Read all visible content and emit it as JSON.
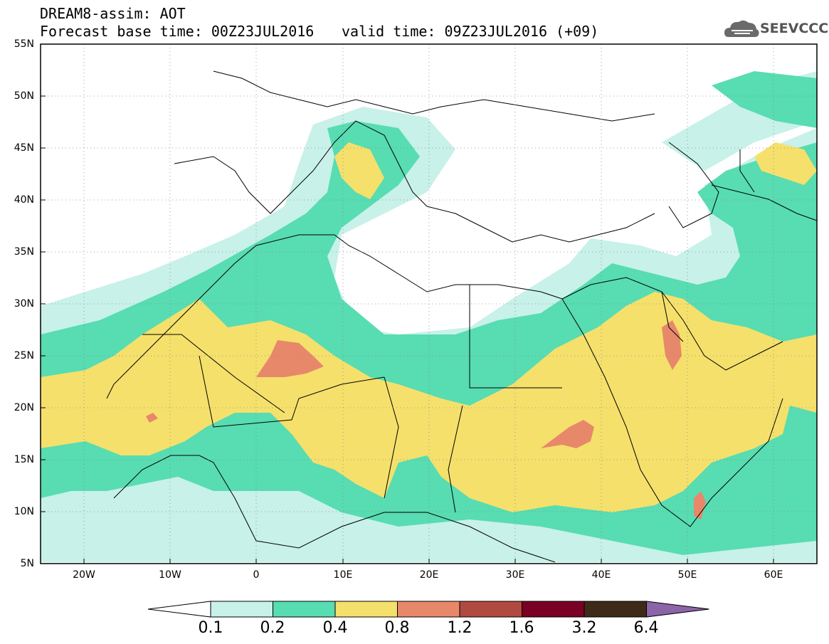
{
  "header": {
    "title": "DREAM8-assim: AOT",
    "base_time": "Forecast base time: 00Z23JUL2016",
    "valid_time": "valid time: 09Z23JUL2016 (+09)",
    "logo": "SEEVCCC"
  },
  "axes": {
    "lat_labels": [
      "55N",
      "50N",
      "45N",
      "40N",
      "35N",
      "30N",
      "25N",
      "20N",
      "15N",
      "10N",
      "5N"
    ],
    "lat_values": [
      55,
      50,
      45,
      40,
      35,
      30,
      25,
      20,
      15,
      10,
      5
    ],
    "lon_labels": [
      "20W",
      "10W",
      "0",
      "10E",
      "20E",
      "30E",
      "40E",
      "50E",
      "60E"
    ],
    "lon_values": [
      -20,
      -10,
      0,
      10,
      20,
      30,
      40,
      50,
      60
    ],
    "lon_range": [
      -25,
      65
    ],
    "lat_range": [
      5,
      55
    ]
  },
  "colorbar": {
    "labels": [
      "0.1",
      "0.2",
      "0.4",
      "0.8",
      "1.2",
      "1.6",
      "3.2",
      "6.4"
    ],
    "colors": [
      "#ffffff",
      "#c7f1e9",
      "#58dcb2",
      "#f5e06c",
      "#e8886a",
      "#b04a40",
      "#7a0024",
      "#3e2a18",
      "#8c64a8"
    ]
  },
  "colors": {
    "land_border": "#000000",
    "background": "#ffffff"
  }
}
